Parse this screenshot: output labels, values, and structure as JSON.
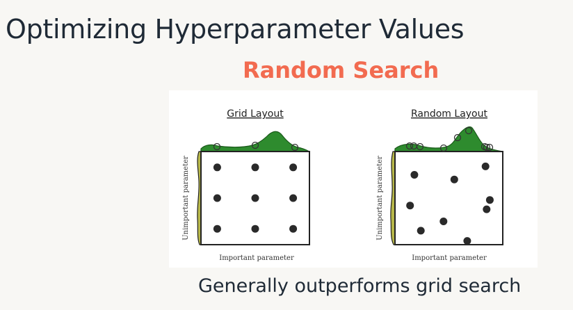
{
  "slide": {
    "title": "Optimizing Hyperparameter Values",
    "subtitle": "Random Search",
    "caption": "Generally outperforms grid search"
  },
  "figure": {
    "panels": [
      {
        "title": "Grid Layout",
        "xlabel": "Important parameter",
        "ylabel": "Unimportant parameter",
        "points": [
          {
            "x": 0.15,
            "y": 0.17
          },
          {
            "x": 0.5,
            "y": 0.17
          },
          {
            "x": 0.85,
            "y": 0.17
          },
          {
            "x": 0.15,
            "y": 0.5
          },
          {
            "x": 0.5,
            "y": 0.5
          },
          {
            "x": 0.85,
            "y": 0.5
          },
          {
            "x": 0.15,
            "y": 0.83
          },
          {
            "x": 0.5,
            "y": 0.83
          },
          {
            "x": 0.85,
            "y": 0.83
          }
        ]
      },
      {
        "title": "Random Layout",
        "xlabel": "Important parameter",
        "ylabel": "Unimportant parameter",
        "points": [
          {
            "x": 0.18,
            "y": 0.25
          },
          {
            "x": 0.55,
            "y": 0.3
          },
          {
            "x": 0.84,
            "y": 0.16
          },
          {
            "x": 0.88,
            "y": 0.52
          },
          {
            "x": 0.85,
            "y": 0.62
          },
          {
            "x": 0.14,
            "y": 0.58
          },
          {
            "x": 0.45,
            "y": 0.75
          },
          {
            "x": 0.24,
            "y": 0.85
          },
          {
            "x": 0.67,
            "y": 0.96
          }
        ]
      }
    ],
    "colors": {
      "top_curve": "#2e8b2e",
      "side_curve": "#b8b84a",
      "marker": "#2a2a2a"
    }
  }
}
